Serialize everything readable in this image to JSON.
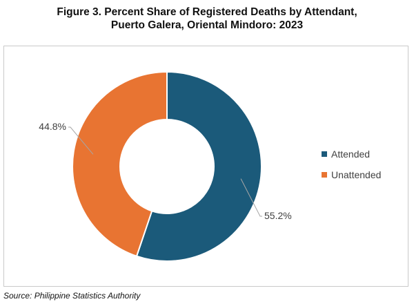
{
  "figure": {
    "title_line1": "Figure 3. Percent Share of Registered Deaths by Attendant,",
    "title_line2": "Puerto Galera, Oriental Mindoro: 2023",
    "source": "Source: Philippine Statistics Authority"
  },
  "chart_data": {
    "type": "pie",
    "style": "donut",
    "categories": [
      "Attended",
      "Unattended"
    ],
    "values": [
      55.2,
      44.8
    ],
    "data_labels": [
      "55.2%",
      "44.8%"
    ],
    "colors": [
      "#1b5a7a",
      "#e87432"
    ],
    "legend_position": "right",
    "start_angle_deg": 0,
    "direction": "clockwise"
  }
}
